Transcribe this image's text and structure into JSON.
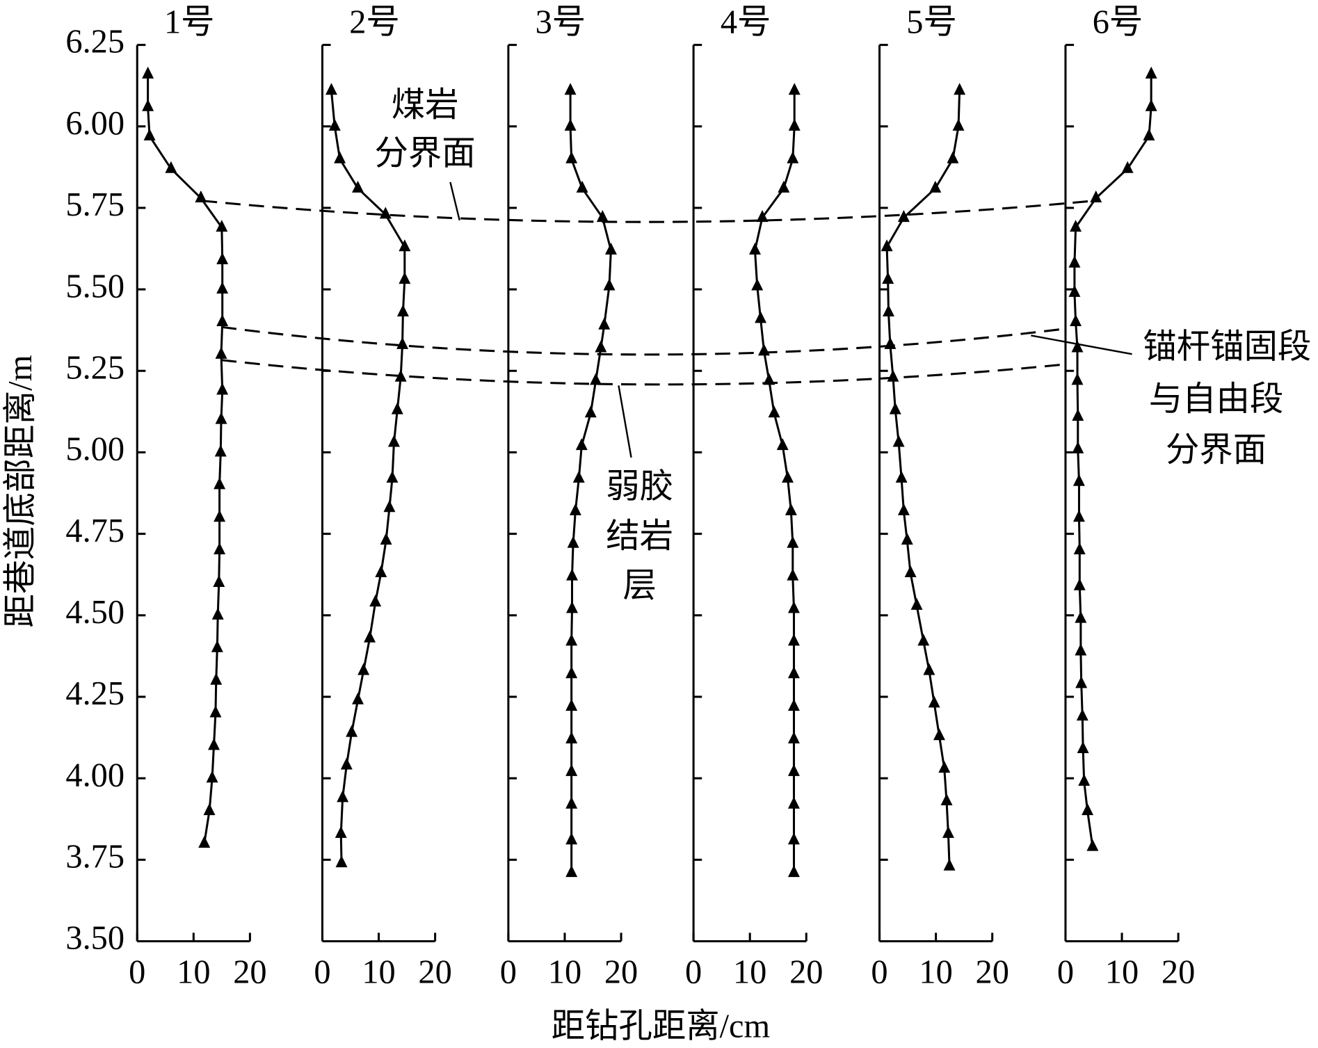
{
  "chart_data": {
    "type": "line",
    "xlabel": "距钻孔距离/cm",
    "ylabel": "距巷道底部距离/m",
    "xlim": [
      0,
      20
    ],
    "xticks": [
      0,
      10,
      20
    ],
    "ylim": [
      3.5,
      6.25
    ],
    "yticks": [
      {
        "value": 3.5,
        "label": "3.50"
      },
      {
        "value": 3.75,
        "label": "3.75"
      },
      {
        "value": 4,
        "label": "4.00"
      },
      {
        "value": 4.25,
        "label": "4.25"
      },
      {
        "value": 4.5,
        "label": "4.50"
      },
      {
        "value": 4.75,
        "label": "4.75"
      },
      {
        "value": 5,
        "label": "5.00"
      },
      {
        "value": 5.25,
        "label": "5.25"
      },
      {
        "value": 5.5,
        "label": "5.50"
      },
      {
        "value": 5.75,
        "label": "5.75"
      },
      {
        "value": 6,
        "label": "6.00"
      },
      {
        "value": 6.25,
        "label": "6.25"
      }
    ],
    "annotations": [
      [
        "煤岩",
        "分界面"
      ],
      [
        "弱胶",
        "结岩",
        "层"
      ],
      [
        "锚杆锚固段",
        "与自由段",
        "分界面"
      ]
    ],
    "series": [
      {
        "name": "1号",
        "color": "#000000",
        "x": [
          1.9,
          1.9,
          2.2,
          6.0,
          11.3,
          15.0,
          15.1,
          15.1,
          15.1,
          14.9,
          15.1,
          14.9,
          14.8,
          14.6,
          14.6,
          14.6,
          14.5,
          14.3,
          14.2,
          14.0,
          13.9,
          13.6,
          13.3,
          12.8,
          11.9
        ],
        "y": [
          6.16,
          6.06,
          5.97,
          5.87,
          5.78,
          5.69,
          5.59,
          5.5,
          5.4,
          5.3,
          5.19,
          5.1,
          5.0,
          4.9,
          4.8,
          4.7,
          4.6,
          4.5,
          4.4,
          4.3,
          4.2,
          4.1,
          4.0,
          3.9,
          3.8
        ]
      },
      {
        "name": "2号",
        "color": "#000000",
        "x": [
          1.6,
          2.2,
          3.1,
          6.3,
          11.2,
          14.6,
          14.6,
          14.3,
          14.2,
          13.9,
          13.3,
          12.7,
          12.4,
          11.9,
          11.3,
          10.4,
          9.4,
          8.4,
          7.3,
          6.3,
          5.2,
          4.3,
          3.6,
          3.3,
          3.4
        ],
        "y": [
          6.11,
          6.0,
          5.9,
          5.81,
          5.73,
          5.63,
          5.53,
          5.43,
          5.33,
          5.23,
          5.13,
          5.03,
          4.92,
          4.83,
          4.73,
          4.63,
          4.54,
          4.43,
          4.33,
          4.24,
          4.14,
          4.04,
          3.94,
          3.83,
          3.74
        ]
      },
      {
        "name": "3号",
        "color": "#000000",
        "x": [
          11.0,
          11.0,
          11.2,
          13.1,
          16.7,
          18.2,
          17.9,
          17.0,
          16.4,
          15.5,
          14.6,
          13.0,
          12.5,
          11.9,
          11.5,
          11.3,
          11.3,
          11.2,
          11.2,
          11.2,
          11.2,
          11.2,
          11.2,
          11.2,
          11.2
        ],
        "y": [
          6.11,
          6.0,
          5.9,
          5.81,
          5.72,
          5.62,
          5.51,
          5.39,
          5.32,
          5.22,
          5.12,
          5.02,
          4.92,
          4.82,
          4.72,
          4.62,
          4.52,
          4.42,
          4.32,
          4.22,
          4.12,
          4.02,
          3.92,
          3.81,
          3.71
        ]
      },
      {
        "name": "4号",
        "color": "#000000",
        "x": [
          17.9,
          17.9,
          17.6,
          16.0,
          12.2,
          10.9,
          11.3,
          11.9,
          12.5,
          13.4,
          14.3,
          15.8,
          16.7,
          17.3,
          17.6,
          17.6,
          17.8,
          17.8,
          17.8,
          17.8,
          17.8,
          17.8,
          17.8,
          17.8,
          17.8
        ],
        "y": [
          6.11,
          6.0,
          5.9,
          5.81,
          5.72,
          5.62,
          5.51,
          5.41,
          5.31,
          5.22,
          5.12,
          5.02,
          4.92,
          4.82,
          4.72,
          4.62,
          4.52,
          4.42,
          4.32,
          4.22,
          4.12,
          4.02,
          3.92,
          3.81,
          3.71
        ]
      },
      {
        "name": "5号",
        "color": "#000000",
        "x": [
          14.2,
          14.0,
          13.0,
          9.9,
          4.3,
          1.3,
          1.5,
          1.6,
          1.9,
          2.4,
          2.8,
          3.4,
          3.9,
          4.3,
          4.9,
          5.5,
          6.6,
          7.8,
          8.8,
          9.7,
          10.6,
          11.5,
          11.9,
          12.2,
          12.4
        ],
        "y": [
          6.11,
          6.0,
          5.9,
          5.81,
          5.72,
          5.63,
          5.53,
          5.43,
          5.33,
          5.23,
          5.13,
          5.03,
          4.92,
          4.82,
          4.73,
          4.63,
          4.53,
          4.42,
          4.33,
          4.23,
          4.13,
          4.03,
          3.93,
          3.83,
          3.73
        ]
      },
      {
        "name": "6号",
        "color": "#000000",
        "x": [
          15.2,
          15.2,
          14.8,
          11.0,
          5.4,
          1.8,
          1.6,
          1.6,
          1.8,
          2.1,
          2.1,
          2.2,
          2.2,
          2.4,
          2.4,
          2.5,
          2.5,
          2.7,
          2.7,
          2.8,
          3.0,
          3.1,
          3.3,
          3.9,
          4.8
        ],
        "y": [
          6.16,
          6.06,
          5.97,
          5.87,
          5.78,
          5.69,
          5.58,
          5.49,
          5.4,
          5.32,
          5.22,
          5.11,
          5.01,
          4.91,
          4.8,
          4.7,
          4.59,
          4.49,
          4.39,
          4.29,
          4.19,
          4.09,
          3.99,
          3.9,
          3.79
        ]
      }
    ]
  }
}
